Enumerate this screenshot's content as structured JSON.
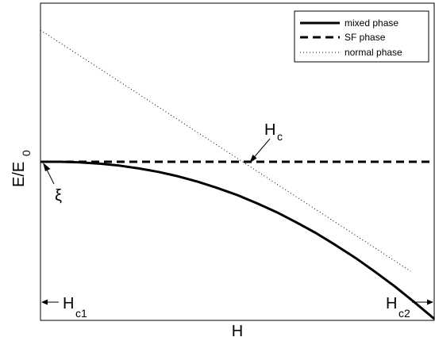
{
  "chart_data": {
    "type": "line",
    "xlabel": "H",
    "ylabel": "E/E",
    "ylabel_subscript": "0",
    "xlim": [
      0,
      1
    ],
    "ylim": [
      0,
      1
    ],
    "grid": false,
    "legend_position": "top-right",
    "series": [
      {
        "name": "mixed phase",
        "style": "solid",
        "x": [
          0,
          0.05,
          0.1,
          0.15,
          0.2,
          0.25,
          0.3,
          0.35,
          0.4,
          0.45,
          0.5,
          0.55,
          0.6,
          0.65,
          0.7,
          0.75,
          0.8,
          0.85,
          0.9,
          0.95,
          1.0
        ],
        "y": [
          0.5,
          0.5,
          0.498,
          0.494,
          0.488,
          0.479,
          0.468,
          0.454,
          0.437,
          0.417,
          0.395,
          0.369,
          0.341,
          0.309,
          0.275,
          0.237,
          0.197,
          0.153,
          0.107,
          0.057,
          0.005
        ]
      },
      {
        "name": "SF phase",
        "style": "dashed",
        "x": [
          0,
          1
        ],
        "y": [
          0.5,
          0.5
        ]
      },
      {
        "name": "normal phase",
        "style": "dotted",
        "x": [
          0,
          0.94
        ],
        "y": [
          0.915,
          0.155
        ]
      }
    ],
    "annotations": {
      "hc": {
        "main": "H",
        "sub": "c",
        "x": 0.53,
        "y": 0.5
      },
      "xi": {
        "text": "ξ",
        "x": 0.0,
        "y": 0.5
      },
      "hc1": {
        "main": "H",
        "sub": "c1",
        "x": 0.0
      },
      "hc2": {
        "main": "H",
        "sub": "c2",
        "x": 1.0
      }
    }
  }
}
